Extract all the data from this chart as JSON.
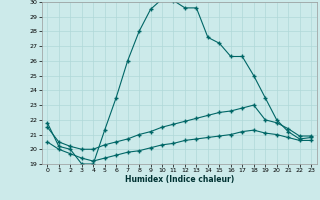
{
  "xlabel": "Humidex (Indice chaleur)",
  "ylabel": "",
  "bg_color": "#cceaea",
  "line_color": "#006666",
  "grid_color": "#b0d8d8",
  "xlim": [
    -0.5,
    23.5
  ],
  "ylim": [
    19,
    30
  ],
  "yticks": [
    19,
    20,
    21,
    22,
    23,
    24,
    25,
    26,
    27,
    28,
    29,
    30
  ],
  "xticks": [
    0,
    1,
    2,
    3,
    4,
    5,
    6,
    7,
    8,
    9,
    10,
    11,
    12,
    13,
    14,
    15,
    16,
    17,
    18,
    19,
    20,
    21,
    22,
    23
  ],
  "line1_x": [
    0,
    1,
    2,
    3,
    4,
    5,
    6,
    7,
    8,
    9,
    10,
    11,
    12,
    13,
    14,
    15,
    16,
    17,
    18,
    19,
    20,
    21,
    22,
    23
  ],
  "line1_y": [
    21.8,
    20.2,
    20.0,
    19.0,
    19.0,
    21.3,
    23.5,
    26.0,
    28.0,
    29.5,
    30.2,
    30.1,
    29.6,
    29.6,
    27.6,
    27.2,
    26.3,
    26.3,
    25.0,
    23.5,
    22.0,
    21.2,
    20.7,
    20.8
  ],
  "line2_x": [
    0,
    1,
    2,
    3,
    4,
    5,
    6,
    7,
    8,
    9,
    10,
    11,
    12,
    13,
    14,
    15,
    16,
    17,
    18,
    19,
    20,
    21,
    22,
    23
  ],
  "line2_y": [
    21.5,
    20.5,
    20.2,
    20.0,
    20.0,
    20.3,
    20.5,
    20.7,
    21.0,
    21.2,
    21.5,
    21.7,
    21.9,
    22.1,
    22.3,
    22.5,
    22.6,
    22.8,
    23.0,
    22.0,
    21.8,
    21.4,
    20.9,
    20.9
  ],
  "line3_x": [
    0,
    1,
    2,
    3,
    4,
    5,
    6,
    7,
    8,
    9,
    10,
    11,
    12,
    13,
    14,
    15,
    16,
    17,
    18,
    19,
    20,
    21,
    22,
    23
  ],
  "line3_y": [
    20.5,
    20.0,
    19.7,
    19.4,
    19.2,
    19.4,
    19.6,
    19.8,
    19.9,
    20.1,
    20.3,
    20.4,
    20.6,
    20.7,
    20.8,
    20.9,
    21.0,
    21.2,
    21.3,
    21.1,
    21.0,
    20.8,
    20.6,
    20.6
  ]
}
